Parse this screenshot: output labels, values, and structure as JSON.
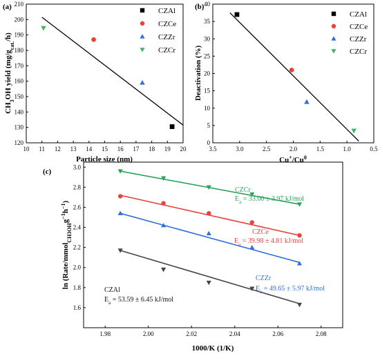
{
  "chart_data": [
    {
      "panel": "(a)",
      "type": "scatter",
      "xlabel": "Particle size (nm)",
      "ylabel_main": "CH",
      "ylabel_sub3": "3",
      "ylabel_mid": "OH yield (mg/g",
      "ylabel_sub_cat": "cat.",
      "ylabel_end": "/h)",
      "xlim": [
        10,
        20
      ],
      "ylim": [
        120,
        210
      ],
      "xticks": [
        "10",
        "11",
        "12",
        "13",
        "14",
        "15",
        "16",
        "17",
        "18",
        "19",
        "20"
      ],
      "yticks": [
        "120",
        "130",
        "140",
        "150",
        "160",
        "170",
        "180",
        "190",
        "200",
        "210"
      ],
      "series": [
        {
          "name": "CZAl",
          "color": "#000000",
          "marker": "square",
          "x": 19.3,
          "y": 130.5
        },
        {
          "name": "CZCe",
          "color": "#e8423b",
          "marker": "circle",
          "x": 14.3,
          "y": 187
        },
        {
          "name": "CZZr",
          "color": "#2f6fde",
          "marker": "triangle-up",
          "x": 17.4,
          "y": 159
        },
        {
          "name": "CZCr",
          "color": "#38b56a",
          "marker": "triangle-down",
          "x": 11.1,
          "y": 194.5
        }
      ],
      "fit_line": {
        "x": [
          11.0,
          20.0
        ],
        "y": [
          201.5,
          131.5
        ]
      }
    },
    {
      "panel": "(b)",
      "type": "scatter",
      "xlabel_main": "Cu",
      "xlabel_sup1": "+",
      "xlabel_mid": "/Cu",
      "xlabel_sup2": "0",
      "ylabel": "Deactivation (%)",
      "xlim": [
        3.5,
        0.5
      ],
      "x_reversed": true,
      "ylim": [
        0,
        40
      ],
      "xticks": [
        "3.5",
        "3.0",
        "2.5",
        "2.0",
        "1.5",
        "1.0",
        "0.5"
      ],
      "yticks": [
        "0",
        "5",
        "10",
        "15",
        "20",
        "25",
        "30",
        "35",
        "40"
      ],
      "series": [
        {
          "name": "CZAl",
          "color": "#000000",
          "marker": "square",
          "x": 3.05,
          "y": 37
        },
        {
          "name": "CZCe",
          "color": "#e8423b",
          "marker": "circle",
          "x": 2.03,
          "y": 21
        },
        {
          "name": "CZZr",
          "color": "#2f6fde",
          "marker": "triangle-up",
          "x": 1.75,
          "y": 11.8
        },
        {
          "name": "CZCr",
          "color": "#38b56a",
          "marker": "triangle-down",
          "x": 0.87,
          "y": 3.5
        }
      ],
      "fit_line": {
        "x": [
          3.18,
          0.78
        ],
        "y": [
          37.5,
          0.5
        ]
      }
    },
    {
      "panel": "(c)",
      "type": "scatter",
      "xlabel": "1000/K (1/K)",
      "ylabel_main": "ln (Rate/mmol",
      "ylabel_sub": "CH3OH",
      "ylabel_g": "g",
      "ylabel_sup1": "−1",
      "ylabel_h": "h",
      "ylabel_sup2": "−1",
      "ylabel_end": ")",
      "xlim": [
        1.97,
        2.09
      ],
      "ylim": [
        1.4,
        3.05
      ],
      "xticks": [
        "1.98",
        "2.00",
        "2.02",
        "2.04",
        "2.06",
        "2.08"
      ],
      "yticks": [
        "1.6",
        "1.8",
        "2.0",
        "2.2",
        "2.4",
        "2.6",
        "2.8",
        "3.0"
      ],
      "x": [
        1.987,
        2.007,
        2.028,
        2.048,
        2.07
      ],
      "series": [
        {
          "name": "CZCr",
          "color": "#2aa35a",
          "marker": "triangle-down",
          "values": [
            2.96,
            2.89,
            2.8,
            2.73,
            2.63
          ],
          "fit": [
            2.96,
            2.63
          ],
          "annot_name": "CZCr",
          "annot_ea": "E",
          "annot_ea_sub": "a",
          "annot_value": " = 33.00 ± 3.97 kJ/mol"
        },
        {
          "name": "CZCe",
          "color": "#e8423b",
          "marker": "circle",
          "values": [
            2.71,
            2.64,
            2.54,
            2.45,
            2.32
          ],
          "fit": [
            2.72,
            2.32
          ],
          "annot_name": "CZCe",
          "annot_ea": "E",
          "annot_ea_sub": "a",
          "annot_value": " = 39.98 ± 4.81 kJ/mol"
        },
        {
          "name": "CZZr",
          "color": "#2f6fde",
          "marker": "triangle-up",
          "values": [
            2.54,
            2.42,
            2.34,
            2.2,
            2.04
          ],
          "fit": [
            2.54,
            2.05
          ],
          "annot_name": "CZZr",
          "annot_ea": "E",
          "annot_ea_sub": "a",
          "annot_value": " = 49.65 ± 5.97 kJ/mol"
        },
        {
          "name": "CZAl",
          "color": "#444444",
          "marker": "triangle-down",
          "values": [
            2.17,
            1.98,
            1.85,
            1.79,
            1.63
          ],
          "fit": [
            2.17,
            1.64
          ],
          "annot_name": "CZAl",
          "annot_ea": "E",
          "annot_ea_sub": "a",
          "annot_value": " = 53.59 ± 6.45 kJ/mol"
        }
      ]
    }
  ]
}
